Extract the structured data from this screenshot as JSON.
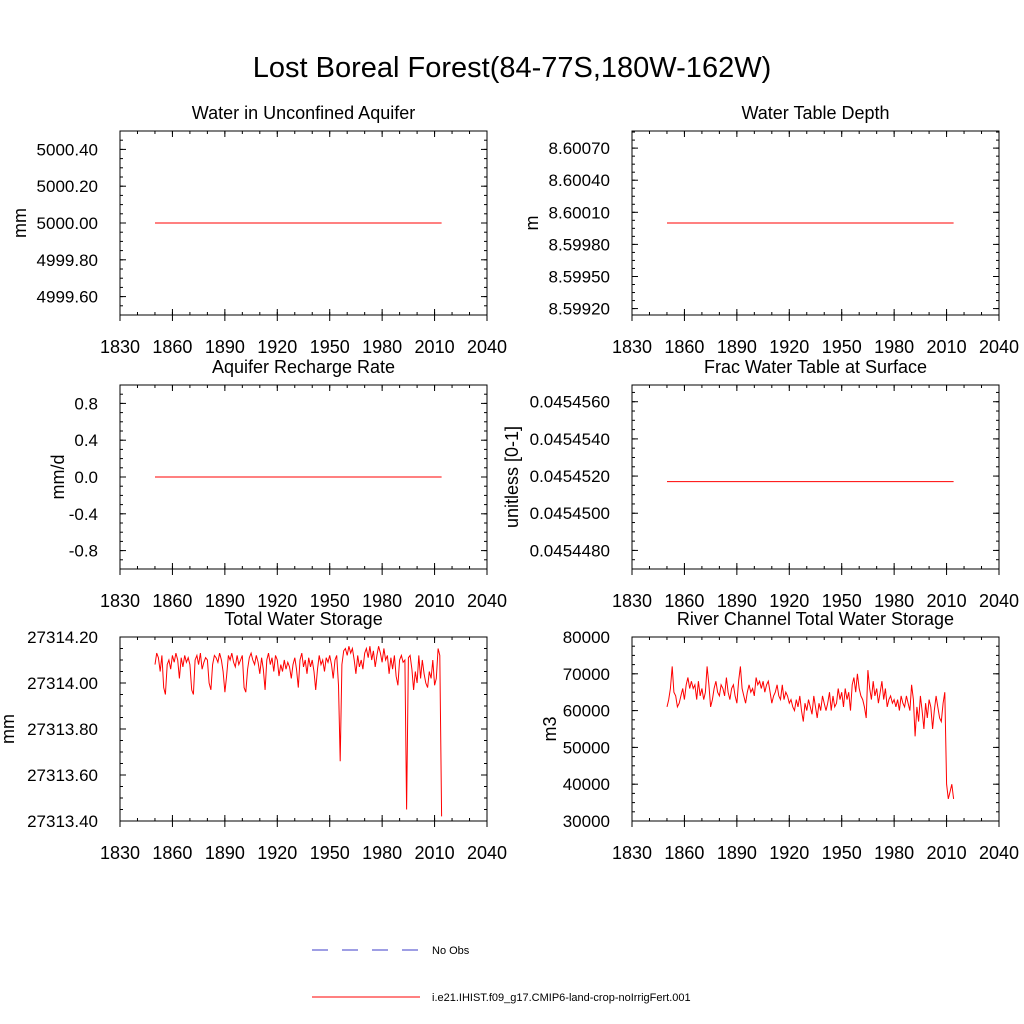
{
  "figure": {
    "title": "Lost Boreal Forest(84-77S,180W-162W)"
  },
  "legend": {
    "entries": [
      {
        "label": "No Obs",
        "color": "#3c3cc8",
        "style": "dashed"
      },
      {
        "label": "i.e21.IHIST.f09_g17.CMIP6-land-crop-noIrrigFert.001",
        "color": "#ff0000",
        "style": "solid"
      }
    ]
  },
  "chart_data": [
    {
      "type": "line",
      "title": "Water in Unconfined Aquifer",
      "xlabel": "",
      "ylabel": "mm",
      "xlim": [
        1830,
        2040
      ],
      "ylim": [
        4999.5,
        5000.5
      ],
      "xticks": [
        "1830",
        "1860",
        "1890",
        "1920",
        "1950",
        "1980",
        "2010",
        "2040"
      ],
      "yticks": [
        {
          "value": 4999.6,
          "label": "4999.60"
        },
        {
          "value": 4999.8,
          "label": "4999.80"
        },
        {
          "value": 5000.0,
          "label": "5000.00"
        },
        {
          "value": 5000.2,
          "label": "5000.20"
        },
        {
          "value": 5000.4,
          "label": "5000.40"
        }
      ],
      "series": [
        {
          "name": "i.e21.IHIST.f09_g17.CMIP6-land-crop-noIrrigFert.001",
          "color": "#ff0000",
          "x": [
            1850,
            2014
          ],
          "values": [
            5000.0,
            5000.0
          ]
        }
      ]
    },
    {
      "type": "line",
      "title": "Water Table Depth",
      "xlabel": "",
      "ylabel": "m",
      "xlim": [
        1830,
        2040
      ],
      "ylim": [
        8.59914,
        8.60086
      ],
      "xticks": [
        "1830",
        "1860",
        "1890",
        "1920",
        "1950",
        "1980",
        "2010",
        "2040"
      ],
      "yticks": [
        {
          "value": 8.5992,
          "label": "8.59920"
        },
        {
          "value": 8.5995,
          "label": "8.59950"
        },
        {
          "value": 8.5998,
          "label": "8.59980"
        },
        {
          "value": 8.6001,
          "label": "8.60010"
        },
        {
          "value": 8.6004,
          "label": "8.60040"
        },
        {
          "value": 8.6007,
          "label": "8.60070"
        }
      ],
      "series": [
        {
          "name": "i.e21.IHIST.f09_g17.CMIP6-land-crop-noIrrigFert.001",
          "color": "#ff0000",
          "x": [
            1850,
            2014
          ],
          "values": [
            8.6,
            8.6
          ]
        }
      ]
    },
    {
      "type": "line",
      "title": "Aquifer Recharge Rate",
      "xlabel": "",
      "ylabel": "mm/d",
      "xlim": [
        1830,
        2040
      ],
      "ylim": [
        -1.0,
        1.0
      ],
      "xticks": [
        "1830",
        "1860",
        "1890",
        "1920",
        "1950",
        "1980",
        "2010",
        "2040"
      ],
      "yticks": [
        {
          "value": -0.8,
          "label": "-0.8"
        },
        {
          "value": -0.4,
          "label": "-0.4"
        },
        {
          "value": 0.0,
          "label": "0.0"
        },
        {
          "value": 0.4,
          "label": "0.4"
        },
        {
          "value": 0.8,
          "label": "0.8"
        }
      ],
      "series": [
        {
          "name": "i.e21.IHIST.f09_g17.CMIP6-land-crop-noIrrigFert.001",
          "color": "#ff0000",
          "x": [
            1850,
            2014
          ],
          "values": [
            0.0,
            0.0
          ]
        }
      ]
    },
    {
      "type": "line",
      "title": "Frac Water Table at Surface",
      "xlabel": "",
      "ylabel": "unitless [0-1]",
      "xlim": [
        1830,
        2040
      ],
      "ylim": [
        0.045447,
        0.0454569
      ],
      "xticks": [
        "1830",
        "1860",
        "1890",
        "1920",
        "1950",
        "1980",
        "2010",
        "2040"
      ],
      "yticks": [
        {
          "value": 0.045448,
          "label": "0.0454480"
        },
        {
          "value": 0.04545,
          "label": "0.0454500"
        },
        {
          "value": 0.045452,
          "label": "0.0454520"
        },
        {
          "value": 0.045454,
          "label": "0.0454540"
        },
        {
          "value": 0.045456,
          "label": "0.0454560"
        }
      ],
      "series": [
        {
          "name": "i.e21.IHIST.f09_g17.CMIP6-land-crop-noIrrigFert.001",
          "color": "#ff0000",
          "x": [
            1850,
            2014
          ],
          "values": [
            0.0454517,
            0.0454517
          ]
        }
      ]
    },
    {
      "type": "line",
      "title": "Total Water Storage",
      "xlabel": "",
      "ylabel": "mm",
      "xlim": [
        1830,
        2040
      ],
      "ylim": [
        27313.4,
        27314.2
      ],
      "xticks": [
        "1830",
        "1860",
        "1890",
        "1920",
        "1950",
        "1980",
        "2010",
        "2040"
      ],
      "yticks": [
        {
          "value": 27313.4,
          "label": "27313.40"
        },
        {
          "value": 27313.6,
          "label": "27313.60"
        },
        {
          "value": 27313.8,
          "label": "27313.80"
        },
        {
          "value": 27314.0,
          "label": "27314.00"
        },
        {
          "value": 27314.2,
          "label": "27314.20"
        }
      ],
      "series": [
        {
          "name": "i.e21.IHIST.f09_g17.CMIP6-land-crop-noIrrigFert.001",
          "color": "#ff0000",
          "x": [
            1850,
            1851,
            1852,
            1853,
            1854,
            1855,
            1856,
            1857,
            1858,
            1859,
            1860,
            1861,
            1862,
            1863,
            1864,
            1865,
            1866,
            1867,
            1868,
            1869,
            1870,
            1871,
            1872,
            1873,
            1874,
            1875,
            1876,
            1877,
            1878,
            1879,
            1880,
            1881,
            1882,
            1883,
            1884,
            1885,
            1886,
            1887,
            1888,
            1889,
            1890,
            1891,
            1892,
            1893,
            1894,
            1895,
            1896,
            1897,
            1898,
            1899,
            1900,
            1901,
            1902,
            1903,
            1904,
            1905,
            1906,
            1907,
            1908,
            1909,
            1910,
            1911,
            1912,
            1913,
            1914,
            1915,
            1916,
            1917,
            1918,
            1919,
            1920,
            1921,
            1922,
            1923,
            1924,
            1925,
            1926,
            1927,
            1928,
            1929,
            1930,
            1931,
            1932,
            1933,
            1934,
            1935,
            1936,
            1937,
            1938,
            1939,
            1940,
            1941,
            1942,
            1943,
            1944,
            1945,
            1946,
            1947,
            1948,
            1949,
            1950,
            1951,
            1952,
            1953,
            1954,
            1955,
            1956,
            1957,
            1958,
            1959,
            1960,
            1961,
            1962,
            1963,
            1964,
            1965,
            1966,
            1967,
            1968,
            1969,
            1970,
            1971,
            1972,
            1973,
            1974,
            1975,
            1976,
            1977,
            1978,
            1979,
            1980,
            1981,
            1982,
            1983,
            1984,
            1985,
            1986,
            1987,
            1988,
            1989,
            1990,
            1991,
            1992,
            1993,
            1994,
            1995,
            1996,
            1997,
            1998,
            1999,
            2000,
            2001,
            2002,
            2003,
            2004,
            2005,
            2006,
            2007,
            2008,
            2009,
            2010,
            2011,
            2012,
            2013,
            2014
          ],
          "values": [
            27314.08,
            27314.13,
            27314.11,
            27314.05,
            27314.12,
            27313.98,
            27313.95,
            27314.08,
            27314.1,
            27314.06,
            27314.12,
            27314.09,
            27314.13,
            27314.1,
            27314.02,
            27314.11,
            27314.07,
            27314.12,
            27314.09,
            27314.11,
            27314.08,
            27313.97,
            27313.95,
            27314.1,
            27314.12,
            27314.08,
            27314.13,
            27314.06,
            27314.09,
            27314.11,
            27314.1,
            27314.0,
            27313.97,
            27314.08,
            27314.12,
            27314.11,
            27314.09,
            27314.13,
            27314.1,
            27314.05,
            27313.96,
            27314.03,
            27314.12,
            27314.1,
            27314.13,
            27314.09,
            27314.07,
            27314.12,
            27314.08,
            27314.1,
            27314.12,
            27313.98,
            27313.96,
            27314.06,
            27314.11,
            27314.13,
            27314.1,
            27314.08,
            27314.12,
            27314.09,
            27314.04,
            27314.11,
            27314.06,
            27313.97,
            27314.1,
            27314.13,
            27314.08,
            27314.11,
            27314.05,
            27314.12,
            27314.1,
            27314.03,
            27314.08,
            27314.05,
            27314.1,
            27314.06,
            27314.09,
            27314.07,
            27314.02,
            27314.08,
            27314.11,
            27314.06,
            27313.98,
            27314.1,
            27314.13,
            27314.07,
            27314.1,
            27314.04,
            27314.11,
            27314.07,
            27314.1,
            27314.05,
            27313.97,
            27314.06,
            27314.12,
            27314.08,
            27314.1,
            27314.05,
            27314.11,
            27314.09,
            27314.12,
            27314.08,
            27314.02,
            27314.1,
            27314.12,
            27313.99,
            27313.66,
            27314.08,
            27314.14,
            27314.15,
            27314.12,
            27314.16,
            27314.13,
            27314.15,
            27314.1,
            27314.04,
            27314.12,
            27314.07,
            27314.1,
            27314.06,
            27314.13,
            27314.15,
            27314.11,
            27314.16,
            27314.1,
            27314.14,
            27314.07,
            27314.12,
            27314.16,
            27314.13,
            27314.09,
            27314.15,
            27314.1,
            27314.12,
            27314.04,
            27314.11,
            27314.06,
            27314.12,
            27314.03,
            27313.99,
            27314.1,
            27314.12,
            27314.09,
            27314.1,
            27313.45,
            27314.11,
            27314.12,
            27314.06,
            27313.97,
            27314.05,
            27314.0,
            27314.12,
            27314.02,
            27314.1,
            27314.04,
            27314.0,
            27313.98,
            27314.05,
            27314.02,
            27314.1,
            27313.99,
            27314.02,
            27314.15,
            27314.12,
            27313.42
          ]
        }
      ]
    },
    {
      "type": "line",
      "title": "River Channel Total Water Storage",
      "xlabel": "",
      "ylabel": "m3",
      "xlim": [
        1830,
        2040
      ],
      "ylim": [
        30000,
        80000
      ],
      "xticks": [
        "1830",
        "1860",
        "1890",
        "1920",
        "1950",
        "1980",
        "2010",
        "2040"
      ],
      "yticks": [
        {
          "value": 30000,
          "label": "30000"
        },
        {
          "value": 40000,
          "label": "40000"
        },
        {
          "value": 50000,
          "label": "50000"
        },
        {
          "value": 60000,
          "label": "60000"
        },
        {
          "value": 70000,
          "label": "70000"
        },
        {
          "value": 80000,
          "label": "80000"
        }
      ],
      "series": [
        {
          "name": "i.e21.IHIST.f09_g17.CMIP6-land-crop-noIrrigFert.001",
          "color": "#ff0000",
          "x": [
            1850,
            1851,
            1852,
            1853,
            1854,
            1855,
            1856,
            1857,
            1858,
            1859,
            1860,
            1861,
            1862,
            1863,
            1864,
            1865,
            1866,
            1867,
            1868,
            1869,
            1870,
            1871,
            1872,
            1873,
            1874,
            1875,
            1876,
            1877,
            1878,
            1879,
            1880,
            1881,
            1882,
            1883,
            1884,
            1885,
            1886,
            1887,
            1888,
            1889,
            1890,
            1891,
            1892,
            1893,
            1894,
            1895,
            1896,
            1897,
            1898,
            1899,
            1900,
            1901,
            1902,
            1903,
            1904,
            1905,
            1906,
            1907,
            1908,
            1909,
            1910,
            1911,
            1912,
            1913,
            1914,
            1915,
            1916,
            1917,
            1918,
            1919,
            1920,
            1921,
            1922,
            1923,
            1924,
            1925,
            1926,
            1927,
            1928,
            1929,
            1930,
            1931,
            1932,
            1933,
            1934,
            1935,
            1936,
            1937,
            1938,
            1939,
            1940,
            1941,
            1942,
            1943,
            1944,
            1945,
            1946,
            1947,
            1948,
            1949,
            1950,
            1951,
            1952,
            1953,
            1954,
            1955,
            1956,
            1957,
            1958,
            1959,
            1960,
            1961,
            1962,
            1963,
            1964,
            1965,
            1966,
            1967,
            1968,
            1969,
            1970,
            1971,
            1972,
            1973,
            1974,
            1975,
            1976,
            1977,
            1978,
            1979,
            1980,
            1981,
            1982,
            1983,
            1984,
            1985,
            1986,
            1987,
            1988,
            1989,
            1990,
            1991,
            1992,
            1993,
            1994,
            1995,
            1996,
            1997,
            1998,
            1999,
            2000,
            2001,
            2002,
            2003,
            2004,
            2005,
            2006,
            2007,
            2008,
            2009,
            2010,
            2011,
            2012,
            2013,
            2014
          ],
          "values": [
            61000,
            63000,
            66000,
            72000,
            65000,
            64000,
            61000,
            62000,
            64000,
            66000,
            63000,
            67000,
            69000,
            66000,
            68000,
            66000,
            67000,
            63000,
            68000,
            64000,
            66000,
            63000,
            65000,
            72000,
            67000,
            61000,
            63000,
            66000,
            68000,
            65000,
            64000,
            67000,
            66000,
            64000,
            69000,
            65000,
            63000,
            66000,
            67000,
            64000,
            62000,
            68000,
            72000,
            66000,
            64000,
            62000,
            65000,
            67000,
            65000,
            66000,
            64000,
            69000,
            67000,
            68000,
            66000,
            68000,
            65000,
            67000,
            68000,
            65000,
            62000,
            64000,
            65000,
            67000,
            64000,
            63000,
            67000,
            63000,
            65000,
            64000,
            62000,
            63000,
            61000,
            60000,
            63000,
            61000,
            64000,
            60000,
            57000,
            62000,
            60000,
            63000,
            61000,
            59000,
            64000,
            61000,
            58000,
            62000,
            60000,
            64000,
            62000,
            60000,
            62000,
            65000,
            60000,
            64000,
            61000,
            62000,
            66000,
            63000,
            65000,
            61000,
            66000,
            63000,
            65000,
            60000,
            67000,
            69000,
            65000,
            70000,
            66000,
            64000,
            63000,
            61000,
            58000,
            71000,
            66000,
            63000,
            68000,
            64000,
            66000,
            62000,
            65000,
            68000,
            63000,
            66000,
            61000,
            63000,
            64000,
            62000,
            63000,
            61000,
            63000,
            60000,
            64000,
            62000,
            61000,
            64000,
            62000,
            60000,
            67000,
            63000,
            53000,
            61000,
            57000,
            64000,
            60000,
            55000,
            62000,
            58000,
            63000,
            61000,
            55000,
            60000,
            64000,
            61000,
            58000,
            57000,
            62000,
            65000,
            40000,
            36000,
            38000,
            40000,
            36000
          ]
        }
      ]
    }
  ]
}
